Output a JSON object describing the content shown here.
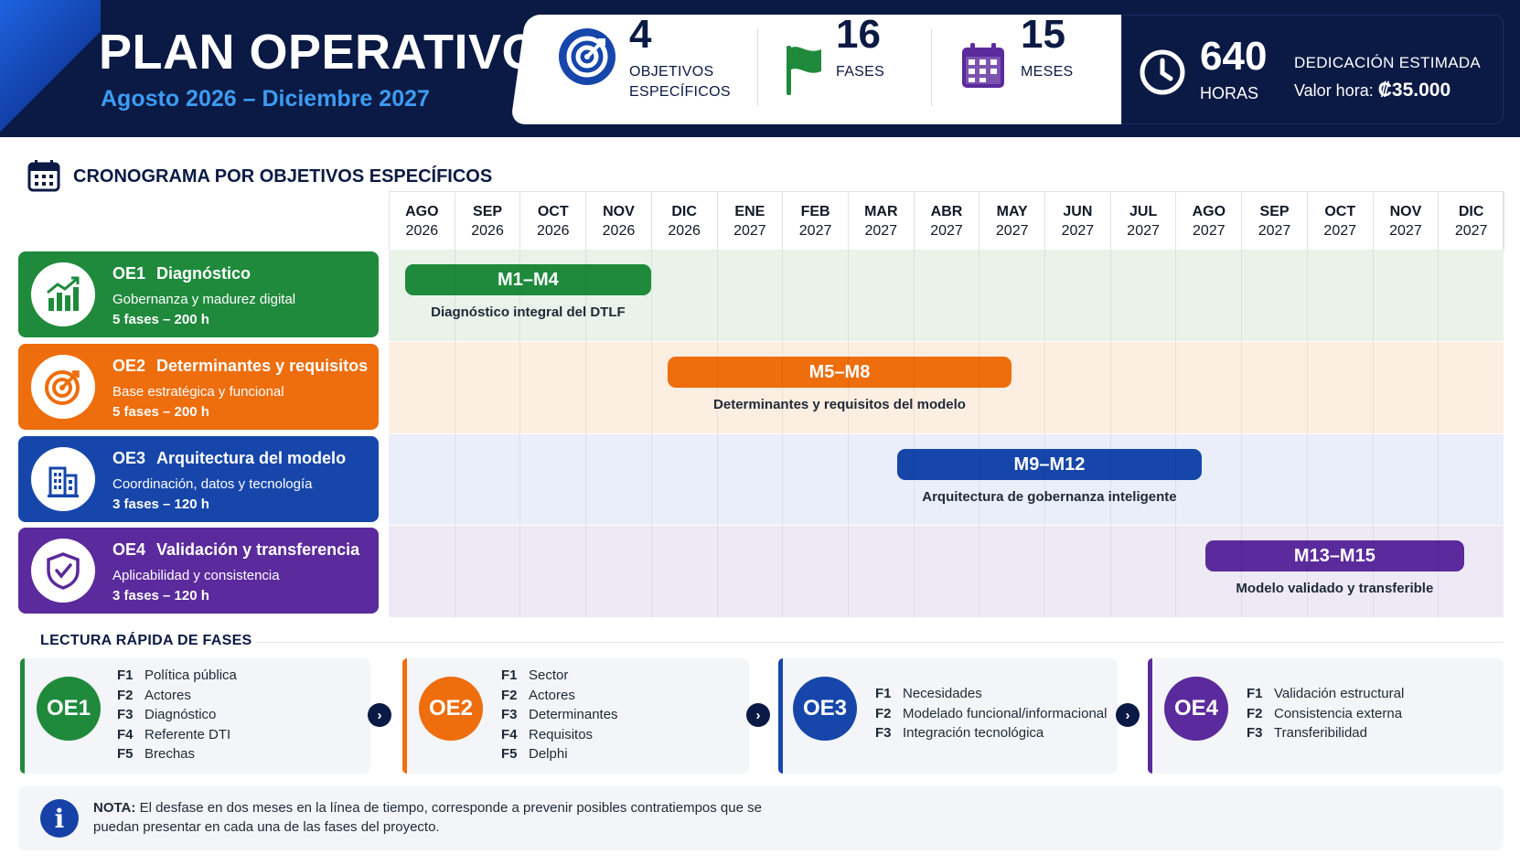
{
  "header": {
    "title": "PLAN OPERATIVO",
    "subtitle": "Agosto 2026 – Diciembre 2027",
    "stats": [
      {
        "icon": "target-icon",
        "value": "4",
        "label_line1": "OBJETIVOS",
        "label_line2": "ESPECÍFICOS"
      },
      {
        "icon": "flag-icon",
        "value": "16",
        "label_line1": "FASES",
        "label_line2": ""
      },
      {
        "icon": "calendar-icon",
        "value": "15",
        "label_line1": "MESES",
        "label_line2": ""
      }
    ],
    "hours": {
      "icon": "clock-icon",
      "value": "640",
      "label": "HORAS",
      "dedication_title": "DEDICACIÓN ESTIMADA",
      "rate_label": "Valor hora:",
      "rate_value": "₡35.000"
    }
  },
  "schedule": {
    "title": "CRONOGRAMA POR OBJETIVOS ESPECÍFICOS",
    "months": [
      {
        "m": "AGO",
        "y": "2026"
      },
      {
        "m": "SEP",
        "y": "2026"
      },
      {
        "m": "OCT",
        "y": "2026"
      },
      {
        "m": "NOV",
        "y": "2026"
      },
      {
        "m": "DIC",
        "y": "2026"
      },
      {
        "m": "ENE",
        "y": "2027"
      },
      {
        "m": "FEB",
        "y": "2027"
      },
      {
        "m": "MAR",
        "y": "2027"
      },
      {
        "m": "ABR",
        "y": "2027"
      },
      {
        "m": "MAY",
        "y": "2027"
      },
      {
        "m": "JUN",
        "y": "2027"
      },
      {
        "m": "JUL",
        "y": "2027"
      },
      {
        "m": "AGO",
        "y": "2027"
      },
      {
        "m": "SEP",
        "y": "2027"
      },
      {
        "m": "OCT",
        "y": "2027"
      },
      {
        "m": "NOV",
        "y": "2027"
      },
      {
        "m": "DIC",
        "y": "2027"
      }
    ],
    "objectives": [
      {
        "code": "OE1",
        "name": "Diagnóstico",
        "desc": "Gobernanza y madurez digital",
        "meta": "5 fases – 200 h",
        "icon": "growth-chart-icon",
        "color": "#1f8a3c",
        "band": "#e9f3ea",
        "bar_label": "M1–M4",
        "bar_caption": "Diagnóstico integral del DTLF",
        "start_month": 0,
        "end_month": 4
      },
      {
        "code": "OE2",
        "name": "Determinantes y requisitos",
        "desc": "Base estratégica y funcional",
        "meta": "5 fases – 200 h",
        "icon": "target-icon",
        "color": "#ee6d0c",
        "band": "#fdeee2",
        "bar_label": "M5–M8",
        "bar_caption": "Determinantes y requisitos del modelo",
        "start_month": 4,
        "end_month": 9.5
      },
      {
        "code": "OE3",
        "name": "Arquitectura del modelo",
        "desc": "Coordinación, datos y tecnología",
        "meta": "3 fases – 120 h",
        "icon": "building-icon",
        "color": "#1646aa",
        "band": "#e9eef8",
        "bar_label": "M9–M12",
        "bar_caption": "Arquitectura de gobernanza inteligente",
        "start_month": 7.5,
        "end_month": 12.4
      },
      {
        "code": "OE4",
        "name": "Validación y transferencia",
        "desc": "Aplicabilidad y consistencia",
        "meta": "3 fases – 120 h",
        "icon": "shield-check-icon",
        "color": "#5b2a9c",
        "band": "#eeeaf5",
        "bar_label": "M13–M15",
        "bar_caption": "Modelo validado y transferible",
        "start_month": 12.2,
        "end_month": 16.4
      }
    ]
  },
  "phases": {
    "title": "LECTURA RÁPIDA DE FASES",
    "groups": [
      {
        "code": "OE1",
        "color": "#1f8a3c",
        "items": [
          {
            "f": "F1",
            "t": "Política pública"
          },
          {
            "f": "F2",
            "t": "Actores"
          },
          {
            "f": "F3",
            "t": "Diagnóstico"
          },
          {
            "f": "F4",
            "t": "Referente DTI"
          },
          {
            "f": "F5",
            "t": "Brechas"
          }
        ]
      },
      {
        "code": "OE2",
        "color": "#ee6d0c",
        "items": [
          {
            "f": "F1",
            "t": "Sector"
          },
          {
            "f": "F2",
            "t": "Actores"
          },
          {
            "f": "F3",
            "t": "Determinantes"
          },
          {
            "f": "F4",
            "t": "Requisitos"
          },
          {
            "f": "F5",
            "t": "Delphi"
          }
        ]
      },
      {
        "code": "OE3",
        "color": "#1646aa",
        "items": [
          {
            "f": "F1",
            "t": "Necesidades"
          },
          {
            "f": "F2",
            "t": "Modelado funcional/informacional"
          },
          {
            "f": "F3",
            "t": "Integración tecnológica"
          }
        ]
      },
      {
        "code": "OE4",
        "color": "#5b2a9c",
        "items": [
          {
            "f": "F1",
            "t": "Validación estructural"
          },
          {
            "f": "F2",
            "t": "Consistencia externa"
          },
          {
            "f": "F3",
            "t": "Transferibilidad"
          }
        ]
      }
    ],
    "arrow_icon": "chevron-right-icon"
  },
  "note": {
    "icon": "info-icon",
    "label": "NOTA:",
    "text": "El desfase en dos meses en la línea de tiempo, corresponde a prevenir posibles contratiempos que se puedan presentar en cada una de las fases del proyecto."
  }
}
